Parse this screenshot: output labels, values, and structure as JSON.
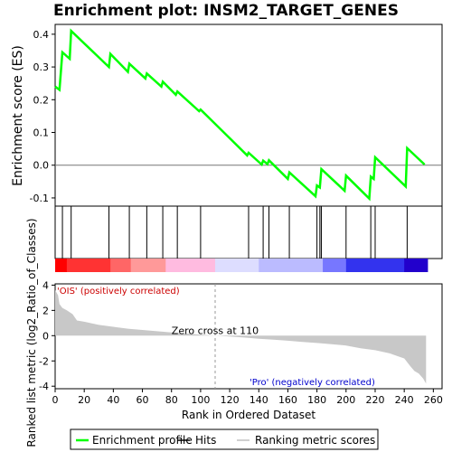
{
  "title": "Enrichment plot: INSM2_TARGET_GENES",
  "chart_data": {
    "type": "line",
    "title": "Enrichment plot: INSM2_TARGET_GENES",
    "top_panel": {
      "ylabel": "Enrichment score (ES)",
      "ylim": [
        -0.125,
        0.43
      ],
      "yticks": [
        -0.1,
        0.0,
        0.1,
        0.2,
        0.3,
        0.4
      ],
      "ytick_labels": [
        "-0.1",
        "0.0",
        "0.1",
        "0.2",
        "0.3",
        "0.4"
      ],
      "line_color": "#00ff00",
      "series": [
        {
          "name": "Enrichment profile",
          "x": [
            0,
            3,
            5,
            10,
            11,
            37,
            38,
            50,
            51,
            62,
            63,
            73,
            74,
            83,
            84,
            99,
            100,
            132,
            133,
            142,
            143,
            146,
            147,
            160,
            161,
            179,
            180,
            182,
            183,
            199,
            200,
            216,
            217,
            219,
            220,
            241,
            242,
            254
          ],
          "y": [
            0.24,
            0.23,
            0.345,
            0.325,
            0.41,
            0.3,
            0.34,
            0.285,
            0.31,
            0.265,
            0.28,
            0.24,
            0.255,
            0.215,
            0.225,
            0.165,
            0.17,
            0.03,
            0.038,
            0.002,
            0.014,
            0.003,
            0.015,
            -0.042,
            -0.022,
            -0.095,
            -0.062,
            -0.068,
            -0.012,
            -0.078,
            -0.032,
            -0.102,
            -0.035,
            -0.042,
            0.024,
            -0.065,
            0.052,
            0.002
          ]
        }
      ]
    },
    "hits": [
      5,
      11,
      37,
      51,
      63,
      74,
      84,
      100,
      133,
      143,
      147,
      161,
      180,
      182,
      183,
      200,
      217,
      220,
      242
    ],
    "ranking_bar": {
      "colors": [
        "#ff0000",
        "#ff3333",
        "#ff6666",
        "#ff9999",
        "#ffbbe0",
        "#ddddff",
        "#bbbbff",
        "#7777ff",
        "#3333ee",
        "#2200cc"
      ],
      "segments": [
        [
          0,
          8
        ],
        [
          8,
          38
        ],
        [
          38,
          52
        ],
        [
          52,
          76
        ],
        [
          76,
          110
        ],
        [
          110,
          140
        ],
        [
          140,
          184
        ],
        [
          184,
          200
        ],
        [
          200,
          240
        ],
        [
          240,
          256
        ]
      ]
    },
    "bottom_panel": {
      "ylabel": "Ranked list metric (log2_Ratio_of_Classes)",
      "xlabel": "Rank in Ordered Dataset",
      "ylim": [
        -4.2,
        4.1
      ],
      "yticks": [
        -4,
        -2,
        0,
        2,
        4
      ],
      "ytick_labels": [
        "-4",
        "-2",
        "0",
        "2",
        "4"
      ],
      "xlim": [
        0,
        266
      ],
      "xticks": [
        0,
        20,
        40,
        60,
        80,
        100,
        120,
        140,
        160,
        180,
        200,
        220,
        240,
        260
      ],
      "xtick_labels": [
        "0",
        "20",
        "40",
        "60",
        "80",
        "100",
        "120",
        "140",
        "160",
        "180",
        "200",
        "220",
        "240",
        "260"
      ],
      "metric_profile": {
        "x": [
          0,
          1,
          2,
          3,
          5,
          8,
          12,
          15,
          20,
          30,
          40,
          50,
          60,
          70,
          80,
          90,
          100,
          110,
          120,
          130,
          140,
          150,
          160,
          170,
          180,
          190,
          200,
          210,
          220,
          230,
          235,
          240,
          244,
          247,
          250,
          253,
          255
        ],
        "y": [
          3.6,
          3.4,
          3.2,
          2.5,
          2.2,
          2.0,
          1.7,
          1.2,
          1.1,
          0.85,
          0.7,
          0.55,
          0.45,
          0.35,
          0.25,
          0.17,
          0.08,
          0.0,
          -0.07,
          -0.15,
          -0.25,
          -0.32,
          -0.4,
          -0.5,
          -0.58,
          -0.67,
          -0.78,
          -1.0,
          -1.15,
          -1.4,
          -1.6,
          -1.8,
          -2.4,
          -2.8,
          -3.0,
          -3.4,
          -3.8
        ]
      },
      "zero_cross_label": "Zero cross at 110",
      "zero_cross": 110,
      "pos_label": "'OIS' (positively correlated)",
      "neg_label": "'Pro' (negatively correlated)",
      "pos_color": "#cc0000",
      "neg_color": "#0000cc"
    },
    "legend": {
      "placement": "bottom",
      "entries": [
        {
          "label": "Enrichment profile",
          "color": "#00ff00"
        },
        {
          "label": "Hits",
          "color": "#000000"
        },
        {
          "label": "Ranking metric scores",
          "color": "#c0c0c0"
        }
      ]
    }
  }
}
